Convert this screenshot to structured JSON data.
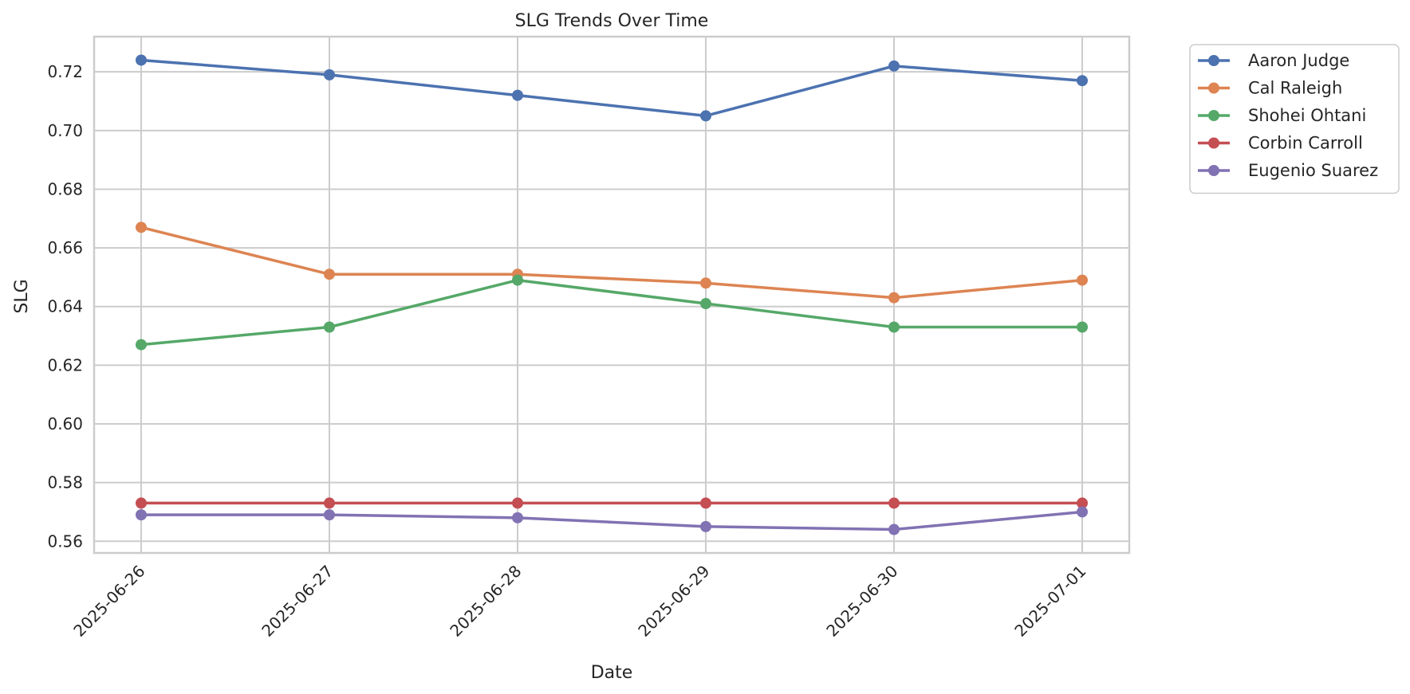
{
  "chart_data": {
    "type": "line",
    "title": "SLG Trends Over Time",
    "xlabel": "Date",
    "ylabel": "SLG",
    "x": [
      "2025-06-26",
      "2025-06-27",
      "2025-06-28",
      "2025-06-29",
      "2025-06-30",
      "2025-07-01"
    ],
    "ylim": [
      0.556,
      0.732
    ],
    "yticks": [
      "0.56",
      "0.58",
      "0.60",
      "0.62",
      "0.64",
      "0.66",
      "0.68",
      "0.70",
      "0.72"
    ],
    "grid": true,
    "legend_position": "outside top-right",
    "series": [
      {
        "name": "Aaron Judge",
        "color": "#4c72b0",
        "values": [
          0.724,
          0.719,
          0.712,
          0.705,
          0.722,
          0.717
        ]
      },
      {
        "name": "Cal Raleigh",
        "color": "#dd8452",
        "values": [
          0.667,
          0.651,
          0.651,
          0.648,
          0.643,
          0.649
        ]
      },
      {
        "name": "Shohei Ohtani",
        "color": "#55a868",
        "values": [
          0.627,
          0.633,
          0.649,
          0.641,
          0.633,
          0.633
        ]
      },
      {
        "name": "Corbin Carroll",
        "color": "#c44e52",
        "values": [
          0.573,
          0.573,
          0.573,
          0.573,
          0.573,
          0.573
        ]
      },
      {
        "name": "Eugenio Suarez",
        "color": "#8172b3",
        "values": [
          0.569,
          0.569,
          0.568,
          0.565,
          0.564,
          0.57
        ]
      }
    ]
  }
}
